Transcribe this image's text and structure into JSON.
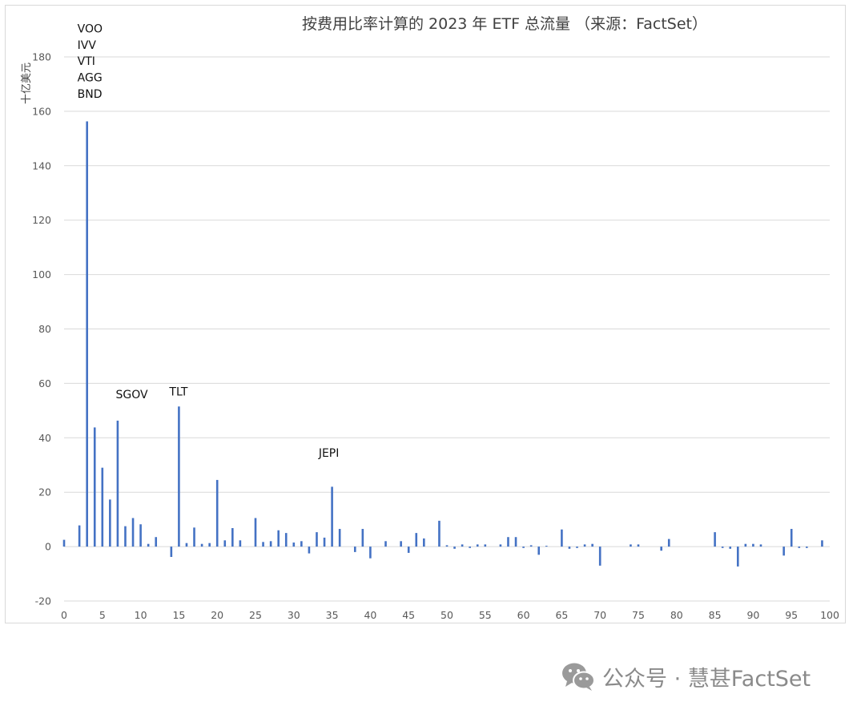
{
  "chart_data": {
    "type": "bar",
    "title": "按费用比率计算的 2023 年 ETF 总流量 （来源：FactSet）",
    "ylabel": "十亿美元",
    "xlabel": "",
    "xlim": [
      0,
      100
    ],
    "ylim": [
      -20,
      180
    ],
    "x_ticks": [
      0,
      5,
      10,
      15,
      20,
      25,
      30,
      35,
      40,
      45,
      50,
      55,
      60,
      65,
      70,
      75,
      80,
      85,
      90,
      95,
      100
    ],
    "y_ticks": [
      -20,
      0,
      20,
      40,
      60,
      80,
      100,
      120,
      140,
      160,
      180
    ],
    "grid": true,
    "legend": "none",
    "bar_color": "#4472c4",
    "x": [
      0,
      2,
      3,
      4,
      5,
      6,
      7,
      8,
      9,
      10,
      11,
      12,
      14,
      15,
      16,
      17,
      18,
      19,
      20,
      21,
      22,
      23,
      25,
      26,
      27,
      28,
      29,
      30,
      31,
      32,
      33,
      34,
      35,
      36,
      38,
      39,
      40,
      42,
      44,
      45,
      46,
      47,
      49,
      50,
      51,
      52,
      53,
      54,
      55,
      57,
      58,
      59,
      60,
      61,
      62,
      63,
      65,
      66,
      67,
      68,
      69,
      70,
      74,
      75,
      78,
      79,
      85,
      86,
      87,
      88,
      89,
      90,
      91,
      94,
      95,
      96,
      97,
      99
    ],
    "values": [
      2.5,
      7.8,
      156.3,
      43.8,
      29.0,
      17.3,
      46.3,
      7.5,
      10.5,
      8.2,
      1.0,
      3.5,
      -3.8,
      51.5,
      1.3,
      7.0,
      1.0,
      1.3,
      24.5,
      2.3,
      6.8,
      2.3,
      10.5,
      1.7,
      2.0,
      6.0,
      5.0,
      1.5,
      2.0,
      -2.5,
      5.3,
      3.3,
      22.0,
      6.5,
      -2.0,
      6.5,
      -4.3,
      2.0,
      2.0,
      -2.3,
      5.0,
      3.0,
      9.5,
      0.5,
      -0.8,
      0.8,
      -0.5,
      0.8,
      0.8,
      0.8,
      3.5,
      3.5,
      -0.5,
      0.5,
      -3.0,
      0.3,
      6.3,
      -0.8,
      -0.5,
      0.8,
      1.0,
      -7.0,
      0.8,
      0.8,
      -1.5,
      2.8,
      5.3,
      -0.5,
      -0.8,
      -7.3,
      1.0,
      1.0,
      0.8,
      -3.3,
      6.5,
      -0.5,
      -0.5,
      2.3
    ],
    "annotations": [
      {
        "label": "VOO",
        "x": 3,
        "y": 189
      },
      {
        "label": "IVV",
        "x": 3,
        "y": 183
      },
      {
        "label": "VTI",
        "x": 3,
        "y": 177
      },
      {
        "label": "AGG",
        "x": 3,
        "y": 171
      },
      {
        "label": "BND",
        "x": 3,
        "y": 165
      },
      {
        "label": "SGOV",
        "x": 8,
        "y": 54.5
      },
      {
        "label": "TLT",
        "x": 15,
        "y": 55.5
      },
      {
        "label": "JEPI",
        "x": 34.5,
        "y": 33
      }
    ]
  },
  "watermark": {
    "text": "公众号 · 慧甚FactSet",
    "icon": "wechat-icon"
  }
}
